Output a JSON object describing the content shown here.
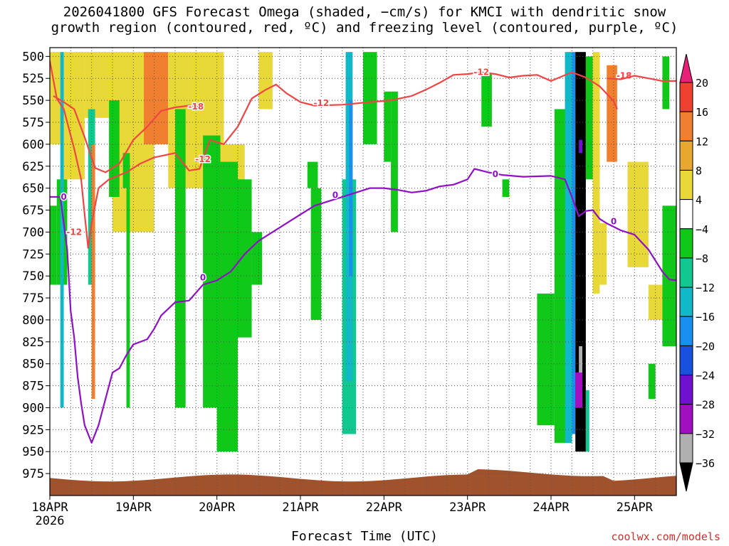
{
  "title": {
    "line1": "2026041800 GFS Forecast Omega (shaded, −cm/s) for KMCI with dendritic snow",
    "line2": "growth region (contoured, red, ºC) and freezing level (contoured, purple, ºC)"
  },
  "credit": "coolwx.com/models",
  "chart_data": {
    "type": "heatmap",
    "xlabel": "Forecast Time (UTC)",
    "x_ticks": [
      {
        "label": "18APR",
        "sub": "2026",
        "hours": 0
      },
      {
        "label": "19APR",
        "hours": 24
      },
      {
        "label": "20APR",
        "hours": 48
      },
      {
        "label": "21APR",
        "hours": 72
      },
      {
        "label": "22APR",
        "hours": 96
      },
      {
        "label": "23APR",
        "hours": 120
      },
      {
        "label": "24APR",
        "hours": 144
      },
      {
        "label": "25APR",
        "hours": 168
      }
    ],
    "xlim_hours": [
      0,
      180
    ],
    "y_ticks": [
      "500",
      "525",
      "550",
      "575",
      "600",
      "625",
      "650",
      "675",
      "700",
      "725",
      "750",
      "775",
      "800",
      "825",
      "850",
      "875",
      "900",
      "925",
      "950",
      "975"
    ],
    "ylim_hpa": [
      490,
      1000
    ],
    "grid": true,
    "colorbar": {
      "labels": [
        "20",
        "16",
        "12",
        "8",
        "4",
        "−4",
        "−8",
        "−12",
        "−16",
        "−20",
        "−24",
        "−28",
        "−32",
        "−36"
      ],
      "colors": [
        "#e8207a",
        "#f04030",
        "#f08030",
        "#e8a830",
        "#e8d838",
        "#ffffff",
        "#10c818",
        "#10c890",
        "#10b8c8",
        "#1890f0",
        "#1850e0",
        "#7010d0",
        "#a010c0",
        "#b0b0b0",
        "#000000"
      ]
    },
    "terrain_color": "#a0522d",
    "series": [
      {
        "name": "-12",
        "color": "#f04545",
        "labels": [
          {
            "text": "-12",
            "x": 7,
            "y": 700
          },
          {
            "text": "-12",
            "x": 44,
            "y": 617
          },
          {
            "text": "-12",
            "x": 78,
            "y": 553
          },
          {
            "text": "-12",
            "x": 124,
            "y": 518
          }
        ],
        "points": [
          [
            0,
            505
          ],
          [
            2,
            548
          ],
          [
            4,
            560
          ],
          [
            7,
            605
          ],
          [
            9,
            640
          ],
          [
            10,
            680
          ],
          [
            11,
            718
          ],
          [
            12,
            690
          ],
          [
            14,
            650
          ],
          [
            17,
            640
          ],
          [
            22,
            632
          ],
          [
            26,
            622
          ],
          [
            30,
            615
          ],
          [
            36,
            610
          ],
          [
            40,
            630
          ],
          [
            43,
            628
          ],
          [
            46,
            595
          ],
          [
            50,
            600
          ],
          [
            54,
            580
          ],
          [
            58,
            548
          ],
          [
            62,
            538
          ],
          [
            65,
            532
          ],
          [
            68,
            542
          ],
          [
            72,
            552
          ],
          [
            76,
            556
          ],
          [
            84,
            555
          ],
          [
            92,
            552
          ],
          [
            98,
            550
          ],
          [
            104,
            545
          ],
          [
            108,
            538
          ],
          [
            112,
            530
          ],
          [
            116,
            521
          ],
          [
            120,
            520
          ],
          [
            124,
            518
          ],
          [
            128,
            520
          ],
          [
            132,
            524
          ],
          [
            136,
            522
          ],
          [
            140,
            521
          ],
          [
            144,
            528
          ],
          [
            150,
            518
          ],
          [
            154,
            524
          ],
          [
            158,
            534
          ],
          [
            162,
            551
          ],
          [
            163,
            560
          ]
        ]
      },
      {
        "name": "-18",
        "color": "#f04545",
        "labels": [
          {
            "text": "-18",
            "x": 42,
            "y": 557
          },
          {
            "text": "-18",
            "x": 165,
            "y": 522
          }
        ],
        "points": [
          [
            1,
            545
          ],
          [
            4,
            552
          ],
          [
            7,
            560
          ],
          [
            10,
            592
          ],
          [
            13,
            627
          ],
          [
            16,
            632
          ],
          [
            20,
            622
          ],
          [
            24,
            595
          ],
          [
            28,
            580
          ],
          [
            32,
            562
          ],
          [
            36,
            558
          ],
          [
            40,
            556
          ],
          [
            44,
            558
          ]
        ]
      },
      {
        "name": "-18 (right)",
        "color": "#f04545",
        "labels": [],
        "points": [
          [
            160,
            525
          ],
          [
            164,
            526
          ],
          [
            168,
            522
          ],
          [
            172,
            525
          ],
          [
            176,
            528
          ],
          [
            180,
            528
          ]
        ]
      },
      {
        "name": "0",
        "color": "#9010c8",
        "labels": [
          {
            "text": "0",
            "x": 4,
            "y": 660
          },
          {
            "text": "0",
            "x": 44,
            "y": 752
          },
          {
            "text": "0",
            "x": 82,
            "y": 658
          },
          {
            "text": "0",
            "x": 128,
            "y": 634
          },
          {
            "text": "0",
            "x": 162,
            "y": 688
          }
        ],
        "points": [
          [
            0,
            660
          ],
          [
            3,
            660
          ],
          [
            4,
            690
          ],
          [
            5,
            720
          ],
          [
            6,
            790
          ],
          [
            7,
            820
          ],
          [
            8,
            865
          ],
          [
            9,
            895
          ],
          [
            10,
            920
          ],
          [
            12,
            940
          ],
          [
            14,
            920
          ],
          [
            16,
            890
          ],
          [
            18,
            860
          ],
          [
            20,
            855
          ],
          [
            22,
            840
          ],
          [
            24,
            828
          ],
          [
            28,
            822
          ],
          [
            30,
            810
          ],
          [
            32,
            795
          ],
          [
            36,
            780
          ],
          [
            40,
            778
          ],
          [
            44,
            760
          ],
          [
            48,
            755
          ],
          [
            52,
            745
          ],
          [
            56,
            725
          ],
          [
            60,
            710
          ],
          [
            64,
            700
          ],
          [
            68,
            690
          ],
          [
            72,
            680
          ],
          [
            76,
            670
          ],
          [
            80,
            665
          ],
          [
            84,
            660
          ],
          [
            88,
            655
          ],
          [
            92,
            650
          ],
          [
            96,
            650
          ],
          [
            100,
            652
          ],
          [
            104,
            655
          ],
          [
            108,
            653
          ],
          [
            112,
            648
          ],
          [
            116,
            646
          ],
          [
            120,
            640
          ],
          [
            122,
            628
          ],
          [
            124,
            630
          ],
          [
            126,
            632
          ],
          [
            130,
            635
          ],
          [
            136,
            637
          ],
          [
            144,
            636
          ],
          [
            148,
            640
          ],
          [
            150,
            660
          ],
          [
            152,
            682
          ],
          [
            154,
            676
          ],
          [
            156,
            675
          ],
          [
            158,
            685
          ],
          [
            160,
            690
          ],
          [
            164,
            698
          ],
          [
            168,
            703
          ],
          [
            172,
            720
          ],
          [
            176,
            745
          ],
          [
            178,
            754
          ],
          [
            180,
            755
          ]
        ]
      }
    ],
    "omega_cells": [
      {
        "x": [
          0,
          3
        ],
        "p": [
          495,
          600
        ],
        "v": 5
      },
      {
        "x": [
          4,
          10
        ],
        "p": [
          495,
          640
        ],
        "v": 6
      },
      {
        "x": [
          10,
          18
        ],
        "p": [
          495,
          570
        ],
        "v": 5
      },
      {
        "x": [
          18,
          30
        ],
        "p": [
          495,
          700
        ],
        "v": 6
      },
      {
        "x": [
          27,
          34
        ],
        "p": [
          495,
          600
        ],
        "v": 12
      },
      {
        "x": [
          34,
          40
        ],
        "p": [
          495,
          650
        ],
        "v": 5
      },
      {
        "x": [
          40,
          50
        ],
        "p": [
          495,
          650
        ],
        "v": 5
      },
      {
        "x": [
          45,
          56
        ],
        "p": [
          600,
          720
        ],
        "v": 5
      },
      {
        "x": [
          60,
          64
        ],
        "p": [
          495,
          560
        ],
        "v": 5
      },
      {
        "x": [
          0,
          2
        ],
        "p": [
          670,
          760
        ],
        "v": -6
      },
      {
        "x": [
          2,
          5
        ],
        "p": [
          640,
          760
        ],
        "v": -7
      },
      {
        "x": [
          3,
          4
        ],
        "p": [
          495,
          900
        ],
        "v": -12
      },
      {
        "x": [
          11,
          13
        ],
        "p": [
          560,
          760
        ],
        "v": -8
      },
      {
        "x": [
          12,
          13
        ],
        "p": [
          600,
          890
        ],
        "v": 14
      },
      {
        "x": [
          17,
          20
        ],
        "p": [
          550,
          660
        ],
        "v": -6
      },
      {
        "x": [
          21,
          23
        ],
        "p": [
          610,
          650
        ],
        "v": -6
      },
      {
        "x": [
          22,
          23
        ],
        "p": [
          650,
          900
        ],
        "v": -6
      },
      {
        "x": [
          36,
          39
        ],
        "p": [
          560,
          900
        ],
        "v": -6
      },
      {
        "x": [
          44,
          49
        ],
        "p": [
          590,
          900
        ],
        "v": -6
      },
      {
        "x": [
          48,
          54
        ],
        "p": [
          620,
          950
        ],
        "v": -7
      },
      {
        "x": [
          54,
          58
        ],
        "p": [
          640,
          820
        ],
        "v": -6
      },
      {
        "x": [
          58,
          61
        ],
        "p": [
          700,
          760
        ],
        "v": -6
      },
      {
        "x": [
          74,
          77
        ],
        "p": [
          620,
          650
        ],
        "v": -6
      },
      {
        "x": [
          75,
          78
        ],
        "p": [
          650,
          800
        ],
        "v": -6
      },
      {
        "x": [
          84,
          88
        ],
        "p": [
          640,
          930
        ],
        "v": -8
      },
      {
        "x": [
          85,
          87
        ],
        "p": [
          495,
          870
        ],
        "v": -14
      },
      {
        "x": [
          86,
          87
        ],
        "p": [
          550,
          750
        ],
        "v": -18
      },
      {
        "x": [
          90,
          94
        ],
        "p": [
          495,
          600
        ],
        "v": -6
      },
      {
        "x": [
          96,
          98
        ],
        "p": [
          540,
          620
        ],
        "v": -6
      },
      {
        "x": [
          98,
          100
        ],
        "p": [
          540,
          700
        ],
        "v": -6
      },
      {
        "x": [
          124,
          127
        ],
        "p": [
          520,
          580
        ],
        "v": -6
      },
      {
        "x": [
          130,
          132
        ],
        "p": [
          640,
          660
        ],
        "v": -6
      },
      {
        "x": [
          140,
          145
        ],
        "p": [
          770,
          920
        ],
        "v": -7
      },
      {
        "x": [
          145,
          150
        ],
        "p": [
          560,
          940
        ],
        "v": -7
      },
      {
        "x": [
          148,
          150
        ],
        "p": [
          495,
          940
        ],
        "v": -12
      },
      {
        "x": [
          150,
          151
        ],
        "p": [
          495,
          930
        ],
        "v": -18
      },
      {
        "x": [
          151,
          154
        ],
        "p": [
          495,
          950
        ],
        "v": -40
      },
      {
        "x": [
          152,
          153
        ],
        "p": [
          830,
          900
        ],
        "v": -34
      },
      {
        "x": [
          152,
          153
        ],
        "p": [
          595,
          610
        ],
        "v": -26
      },
      {
        "x": [
          151,
          153
        ],
        "p": [
          860,
          900
        ],
        "v": -28
      },
      {
        "x": [
          154,
          156
        ],
        "p": [
          500,
          640
        ],
        "v": -7
      },
      {
        "x": [
          154,
          155
        ],
        "p": [
          880,
          950
        ],
        "v": -8
      },
      {
        "x": [
          156,
          158
        ],
        "p": [
          495,
          770
        ],
        "v": 6
      },
      {
        "x": [
          158,
          160
        ],
        "p": [
          690,
          760
        ],
        "v": 5
      },
      {
        "x": [
          160,
          163
        ],
        "p": [
          510,
          620
        ],
        "v": 12
      },
      {
        "x": [
          166,
          172
        ],
        "p": [
          620,
          740
        ],
        "v": 5
      },
      {
        "x": [
          172,
          176
        ],
        "p": [
          760,
          800
        ],
        "v": 5
      },
      {
        "x": [
          176,
          178
        ],
        "p": [
          500,
          560
        ],
        "v": -6
      },
      {
        "x": [
          176,
          180
        ],
        "p": [
          670,
          830
        ],
        "v": -6
      },
      {
        "x": [
          172,
          174
        ],
        "p": [
          850,
          890
        ],
        "v": -6
      },
      {
        "x": [
          180,
          181
        ],
        "p": [
          600,
          630
        ],
        "v": 5
      }
    ]
  }
}
